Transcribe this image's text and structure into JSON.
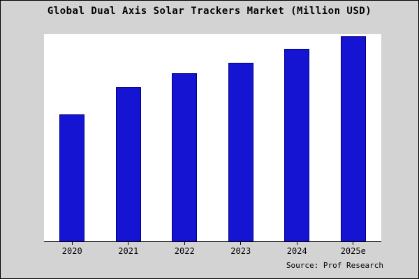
{
  "title": "Global Dual Axis Solar Trackers Market (Million USD)",
  "source_text": "Source: Prof Research",
  "colors": {
    "bar_fill": "#1414d2",
    "bar_border": "#000080",
    "figure_background": "#d3d3d3",
    "plot_background": "#ffffff",
    "text": "#000000"
  },
  "chart_data": {
    "type": "bar",
    "title": "Global Dual Axis Solar Trackers Market (Million USD)",
    "categories": [
      "2020",
      "2021",
      "2022",
      "2023",
      "2024",
      "2025e"
    ],
    "values": [
      62,
      75,
      82,
      87,
      94,
      100
    ],
    "xlabel": "",
    "ylabel": "",
    "ylim": [
      0,
      101
    ],
    "grid": false,
    "legend": false,
    "annotation": "Source: Prof Research"
  }
}
